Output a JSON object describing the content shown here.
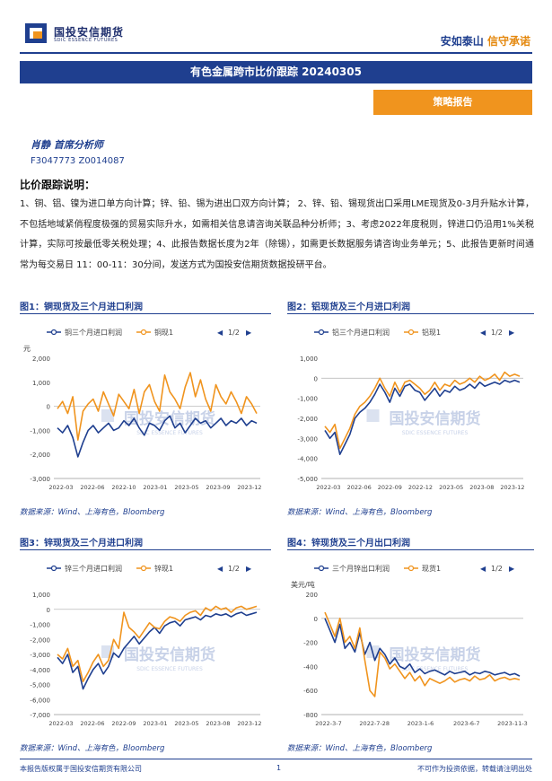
{
  "header": {
    "logo_cn": "国投安信期货",
    "logo_en": "SDIC ESSENCE FUTURES",
    "slogan_main": "安如泰山",
    "slogan_accent": "信守承诺",
    "title": "有色金属跨市比价跟踪 20240305",
    "tag": "策略报告"
  },
  "author": {
    "name": "肖静  首席分析师",
    "license": "F3047773  Z0014087"
  },
  "intro": {
    "heading": "比价跟踪说明：",
    "body": "1、铜、铝、镍为进口单方向计算；锌、铅、锡为进出口双方向计算； 2、锌、铅、锡现货出口采用LME现货及0-3月升贴水计算，不包括地域紧俏程度极强的贸易实际升水，如需相关信息请咨询关联品种分析师；3、考虑2022年度税则，锌进口仍沿用1%关税计算，实际可按最低零关税处理；4、此报告数据长度为2年（除锡），如需更长数据服务请咨询业务单元；5、此报告更新时间通常为每交易日 11：00-11：30分间，发送方式为国投安信期货数据投研平台。"
  },
  "watermark": {
    "cn": "国投安信期货",
    "en": "SDIC ESSENCE FUTURES"
  },
  "colors": {
    "blue": "#1f3f8f",
    "orange": "#f0941e",
    "navy": "#1f2f6e"
  },
  "chart_data": [
    {
      "type": "line",
      "title": "图1：铜现货及三个月进口利润",
      "unit": "元",
      "series": [
        {
          "name": "铜三个月进口利润",
          "color": "#1f3f8f",
          "values": [
            -900,
            -1100,
            -800,
            -1300,
            -2100,
            -1500,
            -1000,
            -800,
            -1100,
            -900,
            -700,
            -1000,
            -900,
            -600,
            -800,
            -500,
            -900,
            -1200,
            -700,
            -800,
            -1000,
            -600,
            -400,
            -900,
            -700,
            -1100,
            -800,
            -500,
            -700,
            -600,
            -900,
            -700,
            -500,
            -800,
            -600,
            -700,
            -500,
            -800,
            -600,
            -700
          ]
        },
        {
          "name": "铜现1",
          "color": "#f0941e",
          "values": [
            -100,
            200,
            -300,
            400,
            -1400,
            -200,
            100,
            300,
            -200,
            600,
            100,
            -400,
            500,
            200,
            -100,
            700,
            -300,
            600,
            900,
            200,
            -200,
            1300,
            600,
            300,
            -100,
            800,
            1400,
            400,
            1100,
            300,
            -200,
            900,
            400,
            100,
            600,
            200,
            -300,
            400,
            100,
            -300
          ]
        }
      ],
      "legend_pager": "1/2",
      "ylim": [
        -3000,
        2000
      ],
      "yticks": [
        "2,000",
        "1,000",
        "0",
        "-1,000",
        "-2,000",
        "-3,000"
      ],
      "xticks": [
        "2022-03",
        "2022-06",
        "2022-10",
        "2023-01",
        "2023-05",
        "2023-09",
        "2023-12"
      ],
      "source": "数据来源：Wind、上海有色，Bloomberg"
    },
    {
      "type": "line",
      "title": "图2：铝现货及三个月进口利润",
      "series": [
        {
          "name": "铝三个月进口利润",
          "color": "#1f3f8f",
          "values": [
            -2600,
            -3000,
            -2700,
            -3800,
            -3300,
            -2800,
            -2000,
            -1700,
            -1500,
            -1200,
            -800,
            -300,
            -700,
            -1200,
            -500,
            -900,
            -400,
            -300,
            -600,
            -700,
            -1100,
            -800,
            -500,
            -900,
            -600,
            -700,
            -400,
            -600,
            -500,
            -300,
            -500,
            -200,
            -400,
            -300,
            -200,
            -300,
            -100,
            -200,
            -100,
            -200
          ]
        },
        {
          "name": "铝现1",
          "color": "#f0941e",
          "values": [
            -2400,
            -2700,
            -2300,
            -3500,
            -3000,
            -2500,
            -1800,
            -1400,
            -1200,
            -900,
            -500,
            0,
            -500,
            -900,
            -200,
            -700,
            -200,
            -100,
            -300,
            -500,
            -800,
            -600,
            -200,
            -600,
            -300,
            -400,
            -100,
            -300,
            -200,
            0,
            -200,
            100,
            -100,
            0,
            200,
            -100,
            300,
            100,
            200,
            100
          ]
        }
      ],
      "legend_pager": "1/2",
      "ylim": [
        -5000,
        1000
      ],
      "yticks": [
        "1,000",
        "0",
        "-1,000",
        "-2,000",
        "-3,000",
        "-4,000",
        "-5,000"
      ],
      "xticks": [
        "2022-03",
        "2022-06",
        "2022-09",
        "2022-12",
        "2023-05",
        "2023-08",
        "2023-12"
      ],
      "source": "数据来源：Wind、上海有色，Bloomberg"
    },
    {
      "type": "line",
      "title": "图3：锌现货及三个月进口利润",
      "series": [
        {
          "name": "锌三个月进口利润",
          "color": "#1f3f8f",
          "values": [
            -3200,
            -3600,
            -3000,
            -4200,
            -3800,
            -5300,
            -4600,
            -4000,
            -3600,
            -4300,
            -3800,
            -2900,
            -3200,
            -2600,
            -2200,
            -1800,
            -2300,
            -1900,
            -1500,
            -1200,
            -1600,
            -1100,
            -900,
            -800,
            -1100,
            -700,
            -600,
            -500,
            -700,
            -400,
            -500,
            -300,
            -400,
            -300,
            -500,
            -300,
            -200,
            -400,
            -300,
            -200
          ]
        },
        {
          "name": "锌现1",
          "color": "#f0941e",
          "values": [
            -3000,
            -3300,
            -2600,
            -3800,
            -3400,
            -4800,
            -4200,
            -3500,
            -3000,
            -3800,
            -3400,
            -2000,
            -2600,
            -200,
            -1200,
            -1500,
            -1900,
            -1400,
            -900,
            -1200,
            -1300,
            -800,
            -500,
            -600,
            -800,
            -400,
            -200,
            -100,
            -400,
            100,
            -100,
            200,
            0,
            100,
            -200,
            100,
            200,
            0,
            100,
            200
          ]
        }
      ],
      "legend_pager": "1/2",
      "ylim": [
        -7000,
        1000
      ],
      "yticks": [
        "1,000",
        "0",
        "-1,000",
        "-2,000",
        "-3,000",
        "-4,000",
        "-5,000",
        "-6,000",
        "-7,000"
      ],
      "xticks": [
        "2022-03",
        "2022-06",
        "2022-09",
        "2023-01",
        "2023-05",
        "2023-08",
        "2023-12"
      ],
      "source": "数据来源：Wind、上海有色，Bloomberg"
    },
    {
      "type": "line",
      "title": "图4：锌现货及三个月出口利润",
      "unit": "美元/吨",
      "series": [
        {
          "name": "三个月锌出口利润",
          "color": "#1f3f8f",
          "values": [
            0,
            -100,
            -200,
            -50,
            -250,
            -200,
            -280,
            -120,
            -300,
            -200,
            -350,
            -250,
            -300,
            -380,
            -330,
            -400,
            -420,
            -380,
            -450,
            -420,
            -460,
            -440,
            -430,
            -450,
            -470,
            -440,
            -460,
            -450,
            -440,
            -470,
            -450,
            -460,
            -440,
            -450,
            -470,
            -460,
            -450,
            -470,
            -460,
            -480
          ]
        },
        {
          "name": "现货1",
          "color": "#f0941e",
          "values": [
            50,
            -50,
            -150,
            0,
            -200,
            -150,
            -250,
            -80,
            -350,
            -600,
            -650,
            -280,
            -330,
            -420,
            -380,
            -440,
            -500,
            -450,
            -520,
            -480,
            -560,
            -500,
            -520,
            -540,
            -520,
            -490,
            -530,
            -510,
            -500,
            -520,
            -480,
            -510,
            -500,
            -470,
            -520,
            -500,
            -490,
            -510,
            -500,
            -510
          ]
        }
      ],
      "legend_pager": "1/2",
      "ylim": [
        -800,
        200
      ],
      "yticks": [
        "200",
        "0",
        "-200",
        "-400",
        "-600",
        "-800"
      ],
      "xticks": [
        "2022-3-7",
        "2022-7-28",
        "2023-1-6",
        "2023-6-7",
        "2023-11-3"
      ],
      "source": "数据来源：Wind、上海有色，Bloomberg"
    }
  ],
  "footer": {
    "left": "本报告版权属于国投安信期货有限公司",
    "page": "1",
    "right": "不可作为投资依据，转载请注明出处"
  }
}
